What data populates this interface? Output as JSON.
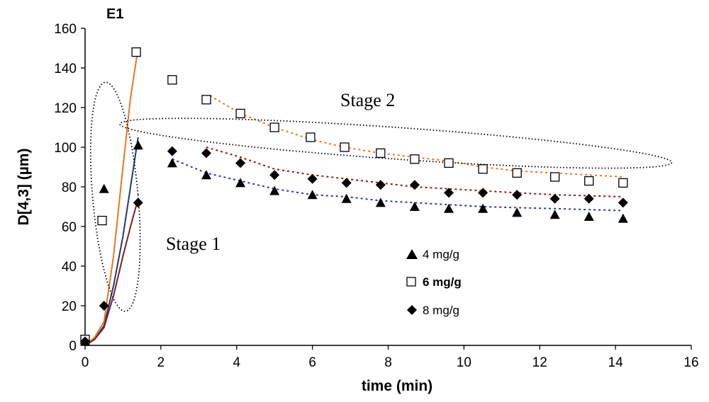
{
  "chart_data": {
    "type": "scatter",
    "title": "E1",
    "xlabel": "time (min)",
    "ylabel": "D[4,3] (µm)",
    "xlim": [
      0,
      16
    ],
    "ylim": [
      0,
      160
    ],
    "xticks": [
      "0",
      "2",
      "4",
      "6",
      "8",
      "10",
      "12",
      "14",
      "16"
    ],
    "yticks": [
      "0",
      "20",
      "40",
      "60",
      "80",
      "100",
      "120",
      "140",
      "160"
    ],
    "annotations": {
      "stage1": "Stage 1",
      "stage2": "Stage 2"
    },
    "series": [
      {
        "name": "4 mg/g",
        "marker": "triangle",
        "x": [
          0,
          0.5,
          1.4,
          2.3,
          3.2,
          4.1,
          5.0,
          6.0,
          6.9,
          7.8,
          8.7,
          9.6,
          10.5,
          11.4,
          12.4,
          13.3,
          14.2
        ],
        "y": [
          2,
          79,
          101,
          92,
          86,
          82,
          78,
          76,
          74,
          72,
          70,
          69,
          69,
          67,
          66,
          65,
          64
        ],
        "stage1_curve": {
          "x": [
            0,
            0.25,
            0.5,
            0.75,
            1.0,
            1.2,
            1.4
          ],
          "y": [
            0,
            3,
            10,
            30,
            55,
            80,
            105
          ],
          "color": "#1F3A6B"
        },
        "stage2_trend": {
          "x": [
            2.3,
            3.2,
            4.1,
            5.0,
            6.0,
            6.9,
            7.8,
            8.7,
            9.6,
            10.5,
            11.4,
            12.4,
            13.3,
            14.2
          ],
          "y": [
            94,
            87,
            83,
            79,
            76,
            75,
            73,
            72,
            71,
            70,
            69.5,
            69,
            68.5,
            68
          ],
          "color": "#3333AA"
        }
      },
      {
        "name": "6 mg/g",
        "marker": "square",
        "x": [
          0,
          0.45,
          1.35,
          2.3,
          3.2,
          4.1,
          5.0,
          5.95,
          6.85,
          7.8,
          8.7,
          9.6,
          10.5,
          11.4,
          12.4,
          13.3,
          14.2
        ],
        "y": [
          3,
          63,
          148,
          134,
          124,
          117,
          110,
          105,
          100,
          97,
          94,
          92,
          89,
          87,
          85,
          83,
          82
        ],
        "stage1_curve": {
          "x": [
            0,
            0.25,
            0.5,
            0.75,
            1.0,
            1.2,
            1.4
          ],
          "y": [
            0,
            4,
            12,
            45,
            90,
            125,
            150
          ],
          "color": "#E87722"
        },
        "stage2_trend": {
          "x": [
            3.3,
            4.1,
            5.0,
            5.95,
            6.85,
            7.8,
            8.7,
            9.6,
            10.5,
            11.4,
            12.4,
            13.3,
            14.2
          ],
          "y": [
            126,
            117,
            110,
            104,
            100,
            97,
            95,
            93,
            90,
            88,
            87,
            86,
            85
          ],
          "color": "#E87722"
        }
      },
      {
        "name": "8 mg/g",
        "marker": "diamond",
        "x": [
          0,
          0.5,
          1.4,
          2.3,
          3.2,
          4.1,
          5.0,
          6.0,
          6.9,
          7.8,
          8.7,
          9.6,
          10.5,
          11.4,
          12.4,
          13.3,
          14.2
        ],
        "y": [
          2,
          20,
          72,
          98,
          97,
          92,
          86,
          84,
          82,
          81,
          81,
          77,
          77,
          76,
          74,
          74,
          72
        ],
        "stage1_curve": {
          "x": [
            0,
            0.25,
            0.5,
            0.75,
            1.0,
            1.2,
            1.4
          ],
          "y": [
            0,
            3,
            9,
            25,
            45,
            60,
            74
          ],
          "color": "#7A1F2B"
        },
        "stage2_trend": {
          "x": [
            3.2,
            4.1,
            5.0,
            6.0,
            6.9,
            7.8,
            8.7,
            9.6,
            10.5,
            11.4,
            12.4,
            13.3,
            14.2
          ],
          "y": [
            100,
            95,
            89,
            86,
            84,
            82,
            80,
            79,
            78,
            77,
            76,
            75.5,
            75
          ],
          "color": "#8B1A1A"
        }
      }
    ],
    "ellipses": [
      {
        "name": "stage1-ellipse",
        "cx": 0.8,
        "cy": 75,
        "rx": 0.6,
        "ry": 58,
        "rotation_deg": -5
      },
      {
        "name": "stage2-ellipse",
        "cx": 8.2,
        "cy": 102,
        "rx": 7.3,
        "ry": 8,
        "rotation_deg": 4
      }
    ]
  }
}
